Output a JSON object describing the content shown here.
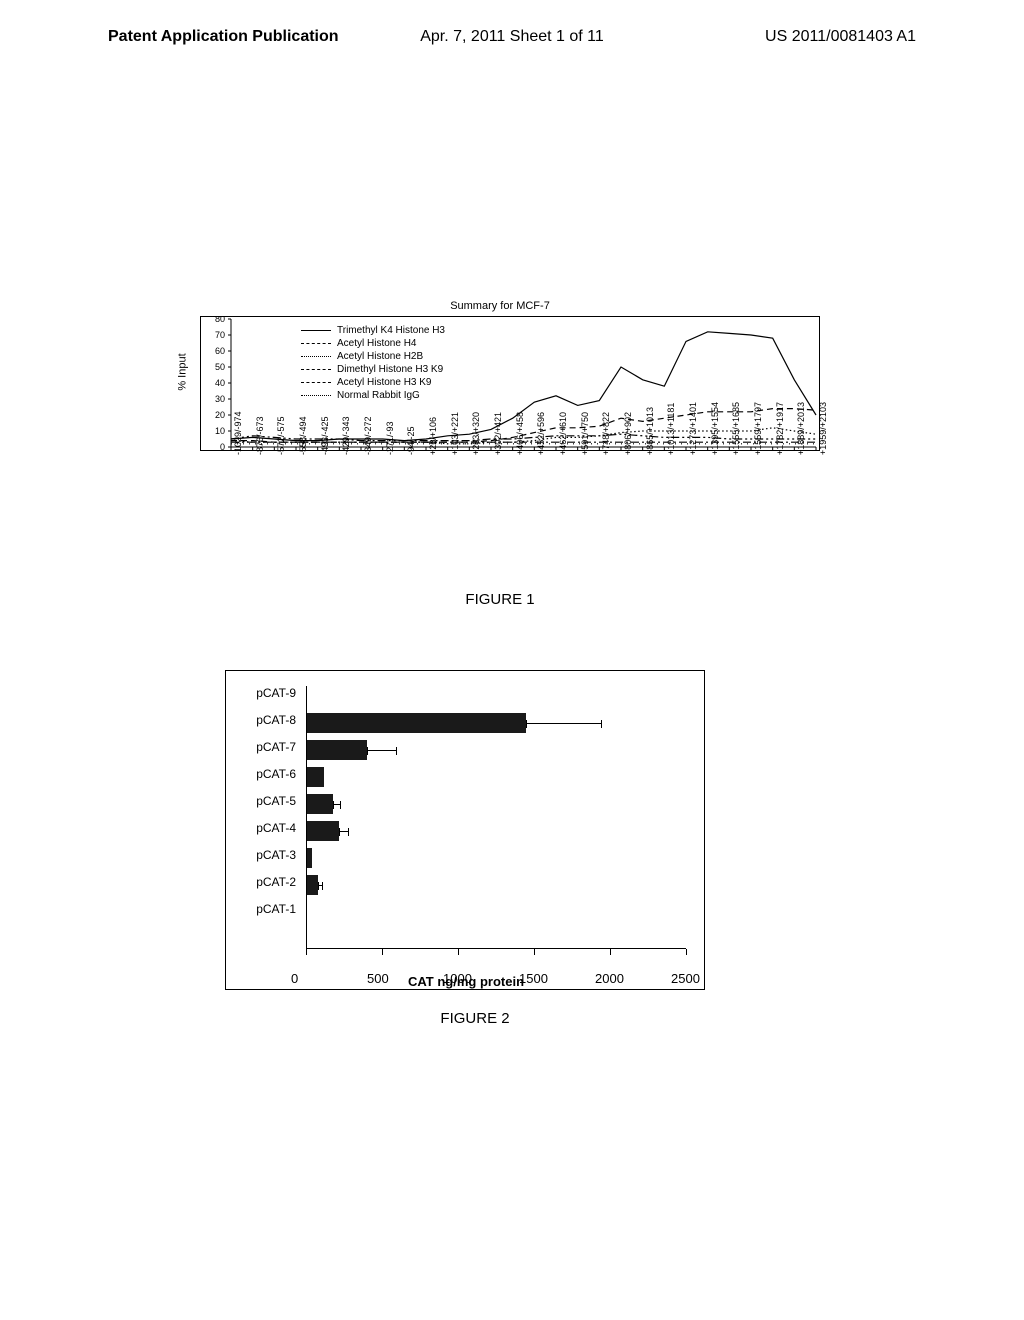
{
  "header": {
    "left": "Patent Application Publication",
    "center": "Apr. 7, 2011  Sheet 1 of 11",
    "right": "US 2011/0081403 A1"
  },
  "figure1": {
    "caption": "FIGURE 1",
    "title": "Summary for MCF-7",
    "y_axis": {
      "label": "% Input",
      "min": 0,
      "max": 80,
      "step": 10,
      "label_fontsize": 11
    },
    "x_ticks": [
      "-1029/-974",
      "-876/-673",
      "-572/-575",
      "-558/-494",
      "-493/-425",
      "-429/-343",
      "-349/-272",
      "-271/-93",
      "-94/-25",
      "+26/+106",
      "+103/+221",
      "+203/+320",
      "+302/+421",
      "+406/+458",
      "+452/+596",
      "+462/+610",
      "+591/+750",
      "+748/+822",
      "+806/+902",
      "+865/+1013",
      "+1013/+1181",
      "+1273/+1401",
      "+1395/+1554",
      "+1555/+1685",
      "+1559/+1797",
      "+1782/+1917",
      "+1889/+2013",
      "+1959/+2103"
    ],
    "legend_items": [
      {
        "label": "Trimethyl K4 Histone H3",
        "dash": "solid"
      },
      {
        "label": "Acetyl Histone H4",
        "dash": "dashed"
      },
      {
        "label": "Acetyl Histone H2B",
        "dash": "dotted"
      },
      {
        "label": "Dimethyl Histone H3 K9",
        "dash": "dashdot"
      },
      {
        "label": "Acetyl Histone H3 K9",
        "dash": "dashdotdot"
      },
      {
        "label": "Normal Rabbit IgG",
        "dash": "sparse-dots"
      }
    ],
    "series": {
      "trimethyl_k4_h3": [
        5,
        6,
        5,
        4,
        4,
        5,
        5,
        5,
        4,
        5,
        7,
        8,
        11,
        18,
        28,
        32,
        26,
        29,
        50,
        42,
        38,
        66,
        72,
        71,
        70,
        68,
        42,
        20
      ],
      "acetyl_h4": [
        4,
        4,
        3,
        3,
        3,
        3,
        3,
        3,
        3,
        3,
        3,
        3,
        4,
        6,
        9,
        12,
        12,
        13,
        18,
        16,
        18,
        20,
        22,
        22,
        22,
        24,
        24,
        23
      ],
      "acetyl_h2b": [
        4,
        3,
        3,
        3,
        3,
        3,
        3,
        3,
        3,
        3,
        2,
        2,
        3,
        3,
        4,
        6,
        6,
        7,
        9,
        10,
        10,
        10,
        10,
        10,
        10,
        12,
        10,
        8
      ],
      "dimethyl_h3_k9": [
        3,
        3,
        3,
        3,
        3,
        3,
        3,
        3,
        3,
        3,
        3,
        3,
        3,
        3,
        3,
        3,
        3,
        3,
        3,
        3,
        3,
        3,
        3,
        3,
        3,
        3,
        3,
        3
      ],
      "acetyl_h3_k9": [
        5,
        7,
        6,
        5,
        5,
        5,
        4,
        4,
        4,
        4,
        4,
        4,
        5,
        5,
        6,
        7,
        7,
        7,
        8,
        7,
        6,
        6,
        6,
        5,
        5,
        5,
        5,
        5
      ],
      "normal_rabbit_igg": [
        2,
        2,
        2,
        2,
        2,
        2,
        2,
        2,
        2,
        2,
        2,
        2,
        2,
        2,
        2,
        2,
        2,
        2,
        2,
        2,
        2,
        2,
        2,
        2,
        2,
        2,
        2,
        2
      ]
    },
    "line_color": "#000000",
    "background_color": "#ffffff",
    "grid": false
  },
  "figure2": {
    "caption": "FIGURE 2",
    "x_axis": {
      "label": "CAT ng/mg protein",
      "min": 0,
      "max": 2500,
      "step": 500,
      "fontsize": 13,
      "fontweight": "bold"
    },
    "categories": [
      "pCAT-9",
      "pCAT-8",
      "pCAT-7",
      "pCAT-6",
      "pCAT-5",
      "pCAT-4",
      "pCAT-3",
      "pCAT-2",
      "pCAT-1"
    ],
    "values": [
      5,
      1450,
      400,
      120,
      180,
      220,
      40,
      80,
      5
    ],
    "errors": [
      0,
      500,
      200,
      0,
      50,
      60,
      0,
      30,
      0
    ],
    "bar_color": "#1a1a1a",
    "background_color": "#ffffff",
    "label_fontsize": 12,
    "tick_fontsize": 13
  }
}
